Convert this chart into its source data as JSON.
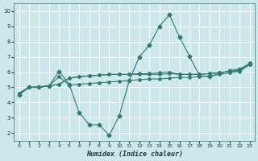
{
  "xlabel": "Humidex (Indice chaleur)",
  "background_color": "#cce8e8",
  "grid_color": "#ffffff",
  "line_color": "#2e7b6e",
  "xlim": [
    -0.5,
    23.5
  ],
  "ylim": [
    1.5,
    10.5
  ],
  "xticks": [
    0,
    1,
    2,
    3,
    4,
    5,
    6,
    7,
    8,
    9,
    10,
    11,
    12,
    13,
    14,
    15,
    16,
    17,
    18,
    19,
    20,
    21,
    22,
    23
  ],
  "yticks": [
    2,
    3,
    4,
    5,
    6,
    7,
    8,
    9,
    10
  ],
  "line1_x": [
    0,
    1,
    2,
    3,
    4,
    5,
    6,
    7,
    8,
    9,
    10,
    11,
    12,
    13,
    14,
    15,
    16,
    17,
    18,
    19,
    20,
    21,
    22,
    23
  ],
  "line1_y": [
    4.6,
    5.0,
    5.0,
    5.1,
    5.7,
    5.15,
    5.2,
    5.25,
    5.3,
    5.35,
    5.4,
    5.45,
    5.5,
    5.55,
    5.55,
    5.6,
    5.65,
    5.65,
    5.7,
    5.75,
    5.85,
    5.95,
    6.05,
    6.5
  ],
  "line2_x": [
    0,
    1,
    2,
    3,
    4,
    5,
    6,
    7,
    8,
    9,
    10,
    11,
    12,
    13,
    14,
    15,
    16,
    17,
    18,
    19,
    20,
    21,
    22,
    23
  ],
  "line2_y": [
    4.6,
    5.0,
    5.0,
    5.1,
    5.2,
    5.6,
    5.7,
    5.75,
    5.8,
    5.85,
    5.85,
    5.85,
    5.85,
    5.85,
    5.85,
    5.9,
    5.85,
    5.85,
    5.85,
    5.9,
    5.95,
    6.05,
    6.1,
    6.5
  ],
  "line3_x": [
    0,
    1,
    2,
    3,
    4,
    5,
    6,
    7,
    8,
    9,
    10,
    11,
    12,
    13,
    14,
    15,
    16,
    17,
    18,
    19,
    20,
    21,
    22,
    23
  ],
  "line3_y": [
    4.6,
    5.0,
    5.0,
    5.1,
    5.2,
    5.6,
    5.7,
    5.75,
    5.8,
    5.85,
    5.85,
    5.85,
    5.9,
    5.9,
    5.95,
    6.0,
    5.85,
    5.85,
    5.85,
    5.9,
    5.95,
    6.05,
    6.1,
    6.6
  ],
  "line4_x": [
    0,
    1,
    2,
    3,
    4,
    5,
    6,
    7,
    8,
    9,
    10,
    11,
    12,
    13,
    14,
    15,
    16,
    17,
    18,
    19,
    20,
    21,
    22,
    23
  ],
  "line4_y": [
    4.5,
    5.0,
    5.05,
    5.1,
    6.05,
    5.2,
    3.35,
    2.55,
    2.55,
    1.85,
    3.15,
    5.45,
    7.0,
    7.75,
    9.0,
    9.75,
    8.3,
    7.05,
    5.75,
    5.7,
    5.9,
    6.1,
    6.2,
    6.55
  ]
}
